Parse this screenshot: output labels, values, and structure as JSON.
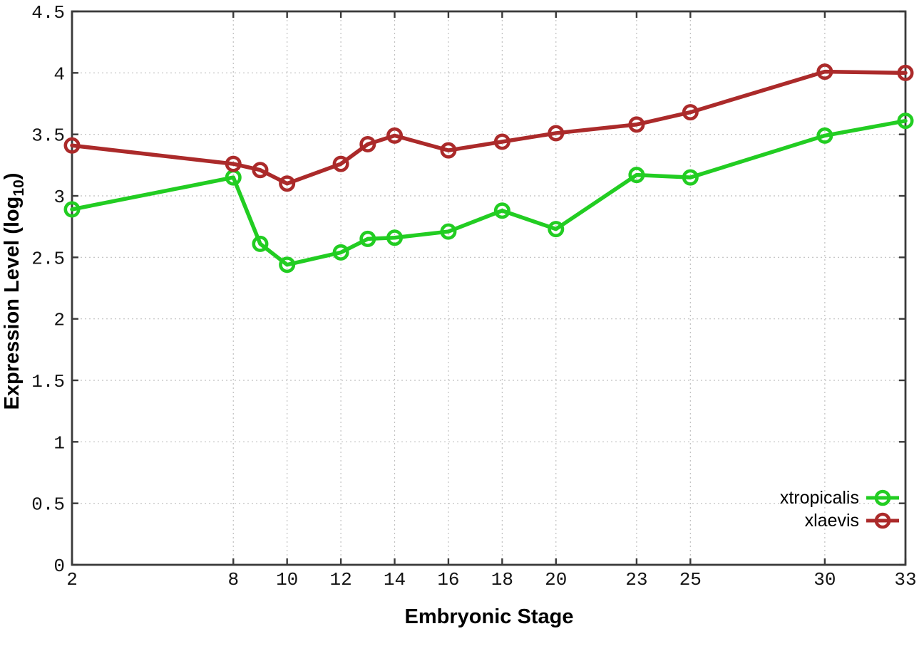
{
  "chart_data": {
    "type": "line",
    "title": "",
    "xlabel": "Embryonic Stage",
    "ylabel": "Expression Level (log10)",
    "xlim": [
      2,
      33
    ],
    "ylim": [
      0,
      4.5
    ],
    "xticks": [
      2,
      8,
      10,
      12,
      14,
      16,
      18,
      20,
      23,
      25,
      30,
      33
    ],
    "yticks": [
      0,
      0.5,
      1,
      1.5,
      2,
      2.5,
      3,
      3.5,
      4,
      4.5
    ],
    "grid": true,
    "grid_style": "dotted",
    "legend_position": "inside-bottom-right",
    "marker": "open-circle",
    "x": [
      2,
      8,
      9,
      10,
      12,
      13,
      14,
      16,
      18,
      20,
      23,
      25,
      30,
      33
    ],
    "series": [
      {
        "name": "xtropicalis",
        "color": "#22cd22",
        "values": [
          2.89,
          3.15,
          2.61,
          2.44,
          2.54,
          2.65,
          2.66,
          2.71,
          2.88,
          2.73,
          3.17,
          3.15,
          3.49,
          3.61
        ]
      },
      {
        "name": "xlaevis",
        "color": "#ab2a2a",
        "values": [
          3.41,
          3.26,
          3.21,
          3.1,
          3.26,
          3.42,
          3.49,
          3.37,
          3.44,
          3.51,
          3.58,
          3.68,
          4.01,
          4.0
        ]
      }
    ],
    "axis_color": "#3a3a3a",
    "grid_color": "#c0c0c0",
    "text_color": "#141414",
    "background": "#ffffff"
  },
  "labels": {
    "ylabel_prefix": "Expression Level (log",
    "ylabel_sub": "10",
    "ylabel_suffix": ")",
    "xlabel": "Embryonic Stage"
  }
}
